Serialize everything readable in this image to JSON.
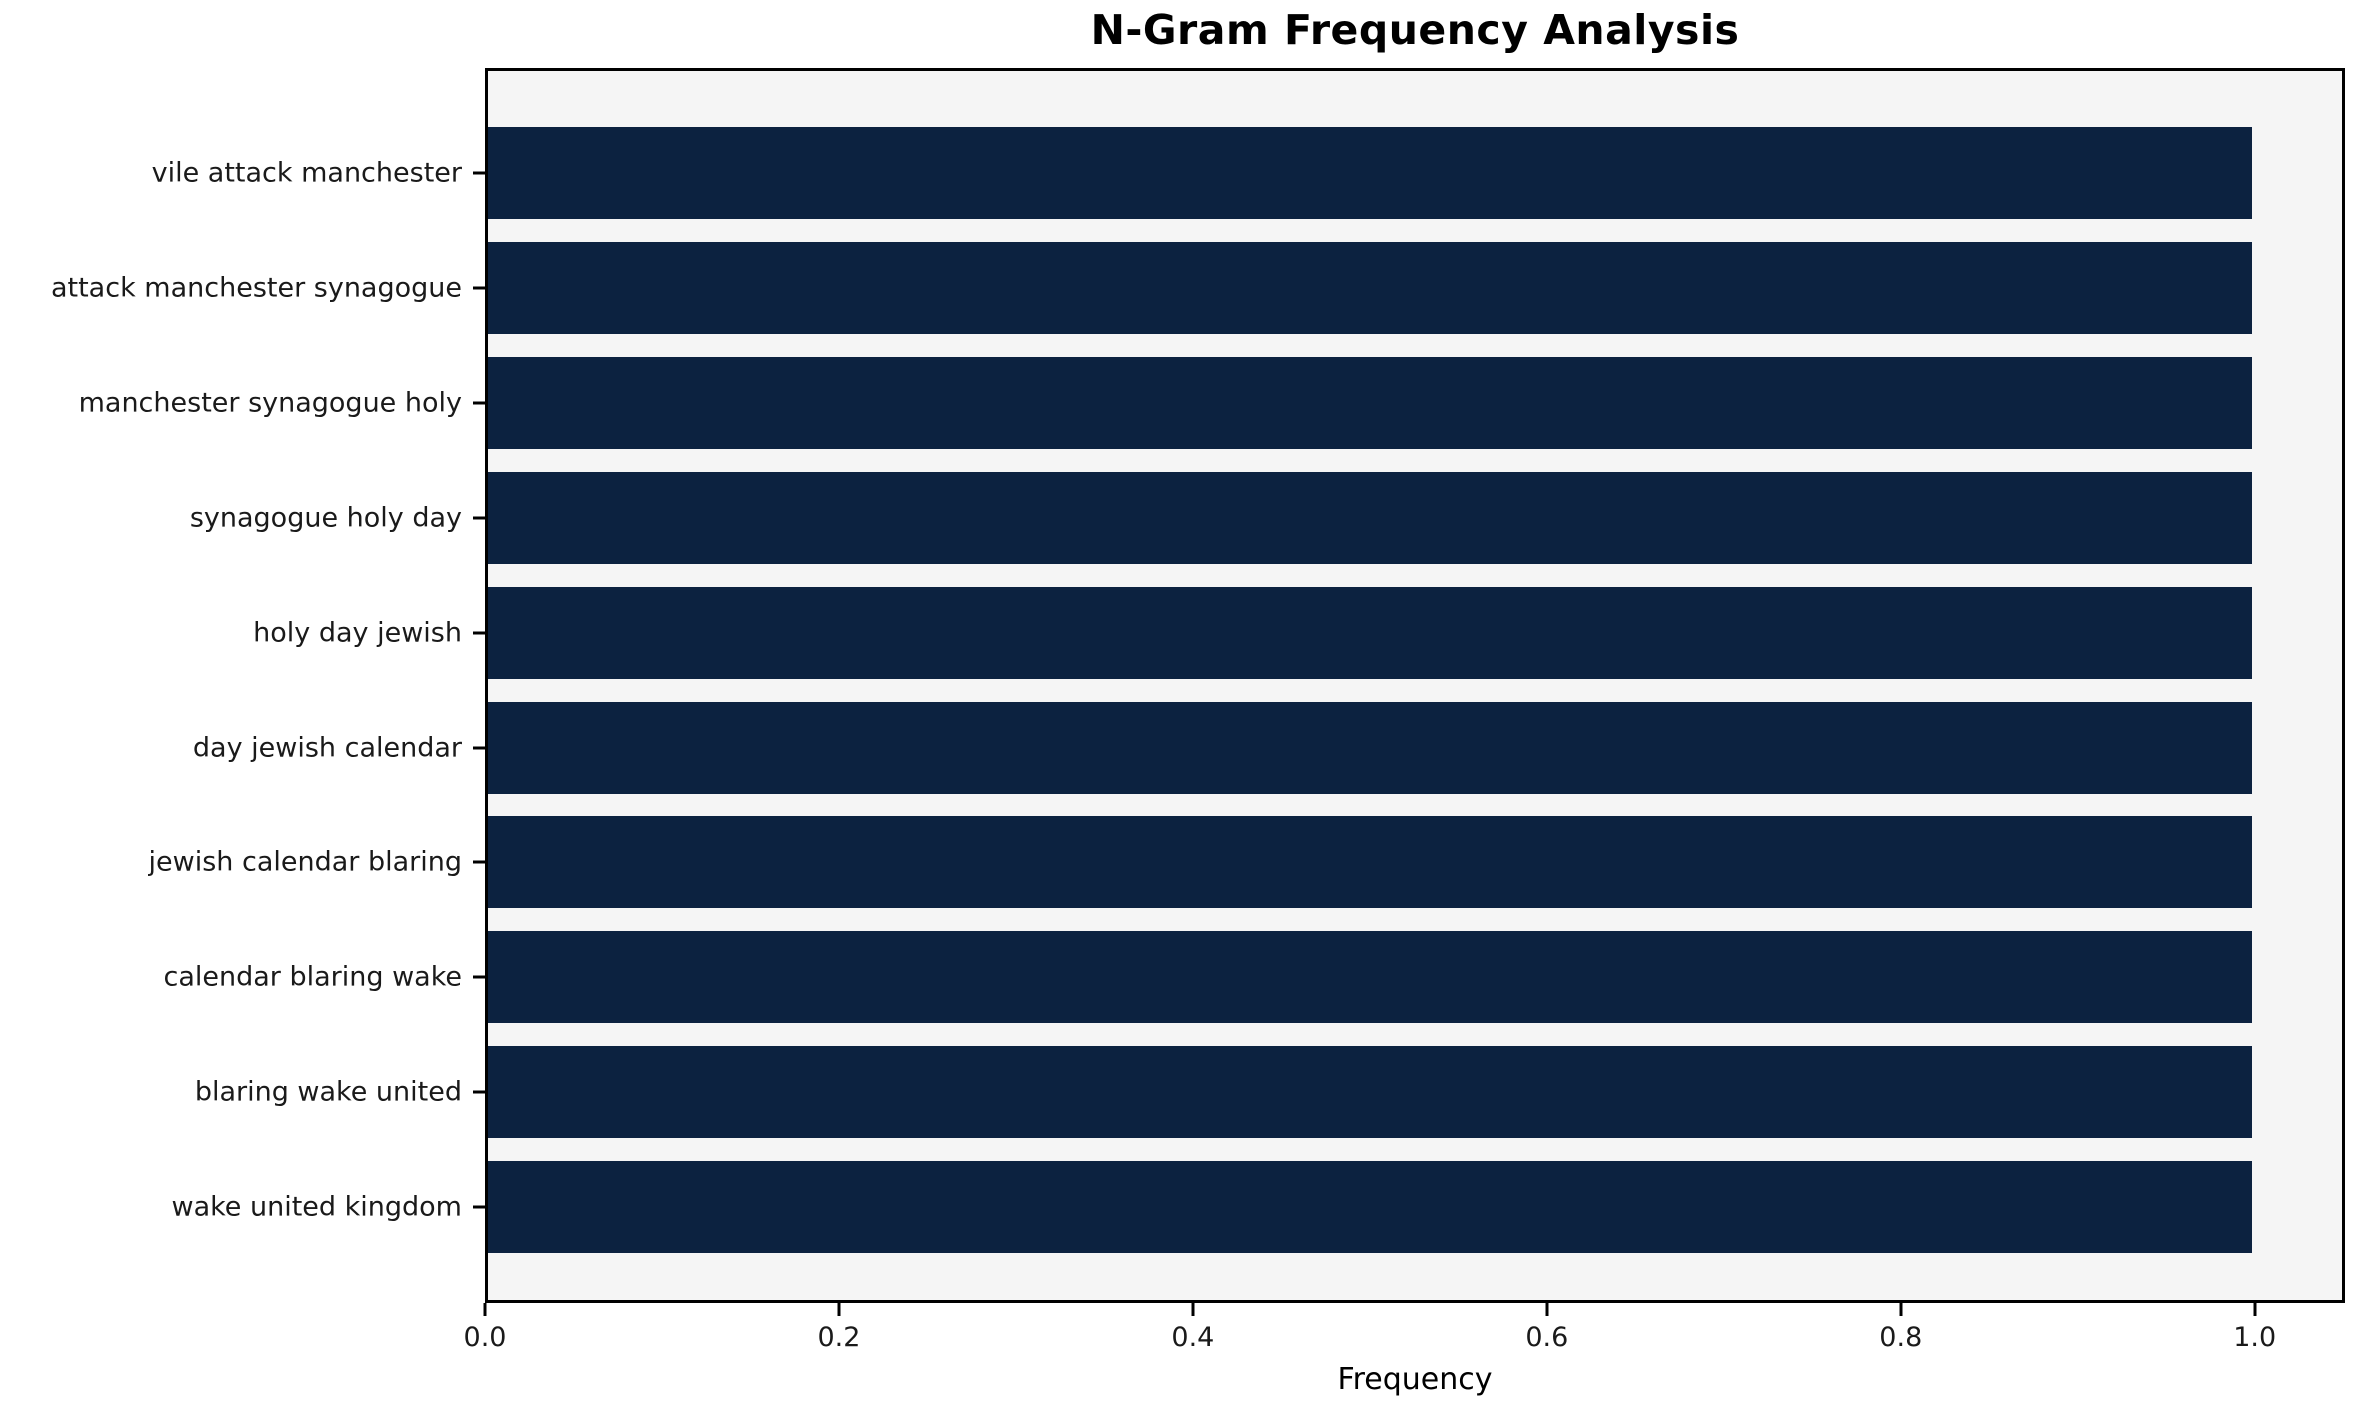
{
  "chart_data": {
    "type": "bar",
    "orientation": "horizontal",
    "title": "N-Gram Frequency Analysis",
    "xlabel": "Frequency",
    "ylabel": "",
    "categories": [
      "vile attack manchester",
      "attack manchester synagogue",
      "manchester synagogue holy",
      "synagogue holy day",
      "holy day jewish",
      "day jewish calendar",
      "jewish calendar blaring",
      "calendar blaring wake",
      "blaring wake united",
      "wake united kingdom"
    ],
    "values": [
      1.0,
      1.0,
      1.0,
      1.0,
      1.0,
      1.0,
      1.0,
      1.0,
      1.0,
      1.0
    ],
    "x_tick_labels": [
      "0.0",
      "0.2",
      "0.4",
      "0.6",
      "0.8",
      "1.0"
    ],
    "x_tick_values": [
      0.0,
      0.2,
      0.4,
      0.6,
      0.8,
      1.0
    ],
    "xlim": [
      0.0,
      1.051
    ],
    "grid": false,
    "legend": null,
    "colors": {
      "bar": "#0c2240",
      "plot_background": "#f5f5f5",
      "figure_background": "#ffffff",
      "spine": "#000000",
      "text": "#1a1a1a"
    }
  }
}
